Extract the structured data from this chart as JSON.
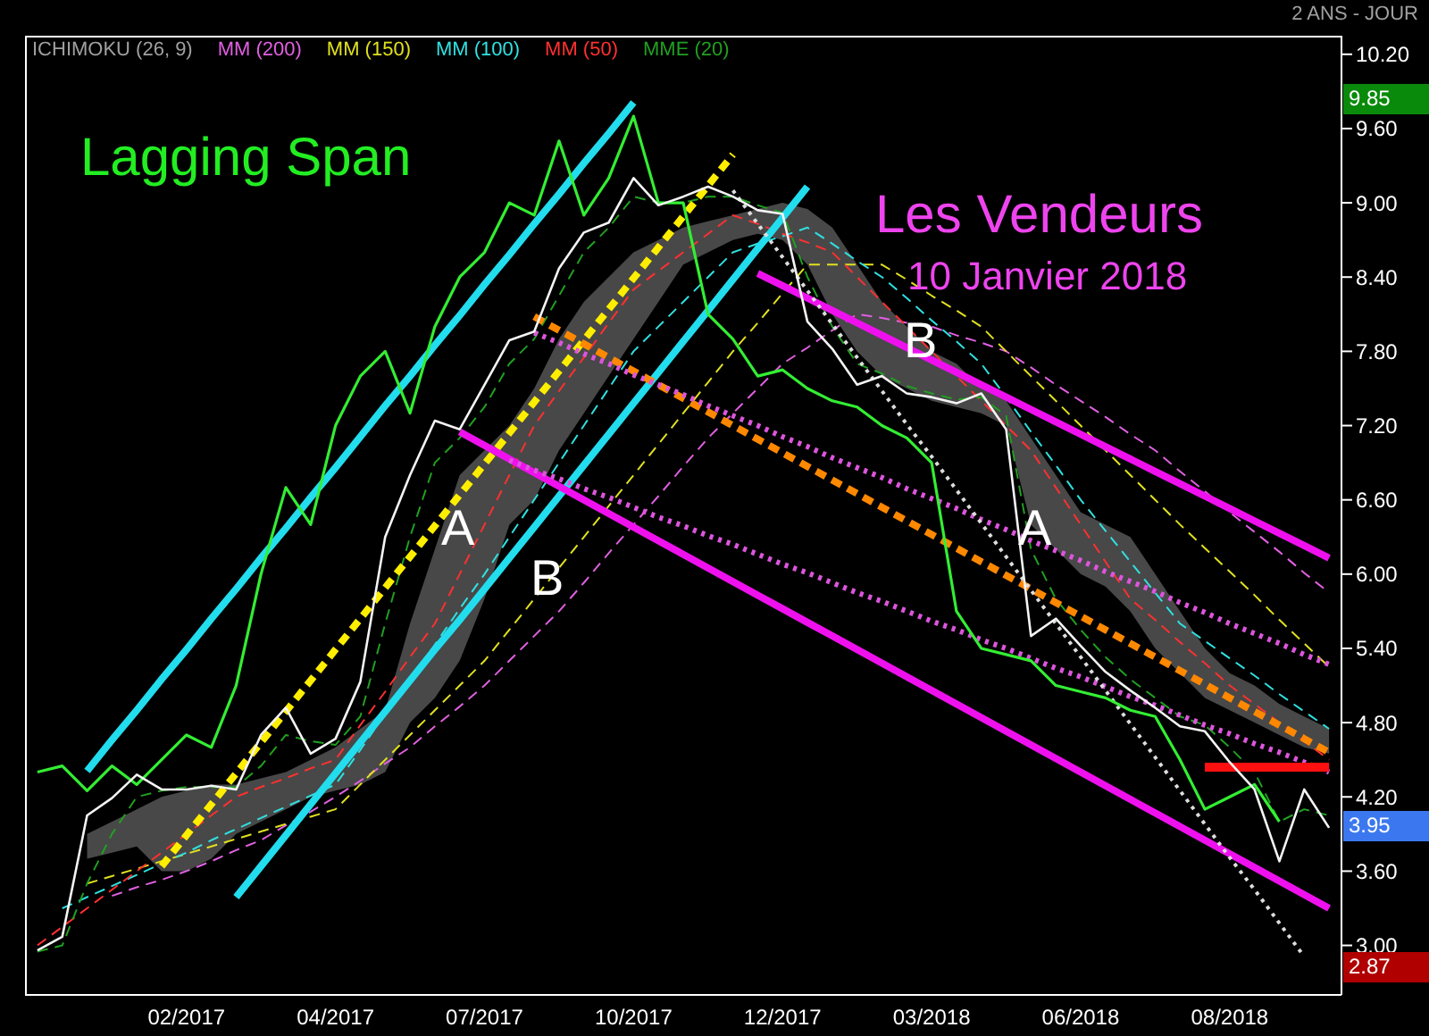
{
  "chart_data": {
    "type": "line",
    "categories": [
      null,
      null,
      null,
      null,
      null,
      null,
      "02/2017",
      null,
      null,
      null,
      null,
      null,
      "04/2017",
      null,
      null,
      null,
      null,
      null,
      "07/2017",
      null,
      null,
      null,
      null,
      null,
      "10/2017",
      null,
      null,
      null,
      null,
      null,
      "12/2017",
      null,
      null,
      null,
      null,
      null,
      "03/2018",
      null,
      null,
      null,
      null,
      null,
      "06/2018",
      null,
      null,
      null,
      null,
      null,
      "08/2018",
      null,
      null,
      null,
      null
    ],
    "ylim": [
      2.6,
      10.35
    ],
    "yticks": [
      {
        "value": 3,
        "label": "3.00"
      },
      {
        "value": 3.6,
        "label": "3.60"
      },
      {
        "value": 4.2,
        "label": "4.20"
      },
      {
        "value": 4.8,
        "label": "4.80"
      },
      {
        "value": 5.4,
        "label": "5.40"
      },
      {
        "value": 6,
        "label": "6.00"
      },
      {
        "value": 6.6,
        "label": "6.60"
      },
      {
        "value": 7.2,
        "label": "7.20"
      },
      {
        "value": 7.8,
        "label": "7.80"
      },
      {
        "value": 8.4,
        "label": "8.40"
      },
      {
        "value": 9,
        "label": "9.00"
      },
      {
        "value": 9.6,
        "label": "9.60"
      },
      {
        "value": 10.2,
        "label": "10.20"
      }
    ],
    "legend": "top left",
    "series": [
      {
        "name": "ICHIMOKU (26, 9)",
        "type": "area",
        "color": "#a0a0a0",
        "values": [
          null,
          null,
          null,
          null,
          null,
          null,
          null,
          null,
          null,
          null,
          null,
          null,
          null,
          null,
          null,
          null,
          null,
          null,
          null,
          null,
          null,
          null,
          null,
          null,
          null,
          null,
          null,
          null,
          null,
          null,
          null,
          null,
          null,
          null,
          null,
          null,
          null,
          null,
          null,
          null,
          null,
          null,
          null,
          null,
          null,
          null,
          null,
          null,
          null,
          null,
          null,
          null,
          null
        ],
        "lower": [
          null,
          null,
          3.7,
          3.75,
          3.8,
          3.6,
          3.6,
          3.7,
          3.9,
          4.0,
          4.1,
          4.2,
          4.25,
          4.3,
          4.4,
          4.8,
          5.0,
          5.3,
          5.8,
          6.4,
          6.6,
          7.0,
          7.3,
          7.6,
          7.9,
          8.2,
          8.5,
          8.6,
          8.7,
          8.75,
          8.7,
          8.5,
          8.1,
          7.8,
          7.6,
          7.5,
          7.4,
          7.35,
          7.3,
          7.2,
          6.4,
          6.2,
          6.0,
          5.9,
          5.7,
          5.4,
          5.2,
          5.0,
          4.9,
          4.8,
          4.7,
          4.6,
          4.55
        ],
        "upper": [
          null,
          null,
          3.9,
          4.0,
          4.1,
          4.2,
          4.25,
          4.3,
          4.3,
          4.35,
          4.4,
          4.5,
          4.6,
          4.75,
          4.9,
          5.6,
          6.2,
          6.8,
          7.0,
          7.2,
          7.5,
          7.9,
          8.2,
          8.4,
          8.6,
          8.7,
          8.8,
          8.85,
          8.9,
          8.95,
          9.0,
          8.95,
          8.8,
          8.5,
          8.2,
          8.0,
          7.8,
          7.7,
          7.5,
          7.4,
          7.1,
          6.8,
          6.5,
          6.4,
          6.3,
          6.0,
          5.7,
          5.4,
          5.2,
          5.1,
          4.95,
          4.85,
          4.75
        ]
      },
      {
        "name": "MM (200)",
        "color": "#e060e0",
        "line_style": "dashed",
        "values": [
          null,
          null,
          null,
          3.4,
          3.47,
          3.53,
          3.6,
          3.68,
          3.77,
          3.85,
          3.97,
          4.08,
          4.2,
          4.33,
          4.47,
          4.6,
          4.77,
          4.93,
          5.1,
          5.3,
          5.5,
          5.7,
          5.93,
          6.17,
          6.4,
          6.63,
          6.87,
          7.1,
          7.3,
          7.5,
          7.7,
          7.83,
          7.97,
          8.1,
          8.07,
          8.03,
          8.0,
          7.93,
          7.87,
          7.8,
          7.67,
          7.53,
          7.4,
          7.27,
          7.13,
          7.0,
          6.83,
          6.67,
          6.5,
          6.34,
          6.18,
          6.01,
          5.85
        ]
      },
      {
        "name": "MM (150)",
        "color": "#e0e020",
        "line_style": "dashed",
        "values": [
          null,
          null,
          3.5,
          3.56,
          3.62,
          3.68,
          3.74,
          3.8,
          3.86,
          3.92,
          3.98,
          4.04,
          4.1,
          4.3,
          4.5,
          4.7,
          4.9,
          5.1,
          5.3,
          5.55,
          5.8,
          6.05,
          6.3,
          6.55,
          6.8,
          7.05,
          7.3,
          7.55,
          7.8,
          8.03,
          8.27,
          8.5,
          8.5,
          8.5,
          8.5,
          8.38,
          8.25,
          8.13,
          8.0,
          7.8,
          7.6,
          7.4,
          7.2,
          7.0,
          6.8,
          6.6,
          6.4,
          6.21,
          6.02,
          5.83,
          5.63,
          5.44,
          5.25
        ]
      },
      {
        "name": "MM (100)",
        "color": "#30e0e0",
        "line_style": "dashed",
        "values": [
          null,
          3.3,
          3.39,
          3.48,
          3.57,
          3.66,
          3.75,
          3.85,
          3.94,
          4.03,
          4.12,
          4.21,
          4.3,
          4.58,
          4.87,
          5.15,
          5.43,
          5.72,
          6.0,
          6.3,
          6.6,
          6.9,
          7.2,
          7.5,
          7.8,
          8.0,
          8.2,
          8.4,
          8.6,
          8.67,
          8.73,
          8.8,
          8.67,
          8.53,
          8.4,
          8.23,
          8.05,
          7.88,
          7.7,
          7.43,
          7.15,
          6.88,
          6.6,
          6.35,
          6.1,
          5.85,
          5.6,
          5.46,
          5.32,
          5.18,
          5.03,
          4.89,
          4.75
        ]
      },
      {
        "name": "MM (50)",
        "color": "#ff3030",
        "line_style": "dashed",
        "values": [
          3.0,
          3.15,
          3.3,
          3.45,
          3.6,
          3.75,
          3.9,
          4.05,
          4.2,
          4.28,
          4.35,
          4.43,
          4.5,
          4.78,
          5.05,
          5.33,
          5.6,
          6.0,
          6.4,
          6.8,
          7.2,
          7.48,
          7.75,
          8.03,
          8.3,
          8.45,
          8.6,
          8.75,
          8.9,
          8.83,
          8.75,
          8.68,
          8.6,
          8.4,
          8.2,
          8.0,
          7.8,
          7.6,
          7.4,
          7.2,
          7.0,
          6.7,
          6.4,
          6.1,
          5.8,
          5.63,
          5.45,
          5.28,
          5.1,
          4.95,
          4.8,
          4.65,
          4.5
        ]
      },
      {
        "name": "MME (20)",
        "color": "#20a020",
        "line_style": "dashed",
        "values": [
          2.95,
          3.0,
          3.5,
          3.9,
          4.2,
          4.25,
          4.28,
          4.28,
          4.28,
          4.45,
          4.7,
          4.65,
          4.62,
          4.85,
          5.6,
          6.3,
          6.9,
          7.1,
          7.35,
          7.7,
          7.9,
          8.25,
          8.6,
          8.8,
          9.05,
          9.0,
          9.0,
          9.05,
          9.05,
          8.98,
          8.92,
          8.4,
          8.0,
          7.7,
          7.62,
          7.52,
          7.46,
          7.41,
          7.43,
          7.28,
          6.2,
          5.8,
          5.55,
          5.33,
          5.15,
          5.0,
          4.85,
          4.78,
          4.6,
          4.4,
          4.0,
          4.1,
          4.05
        ]
      },
      {
        "color": "#22ddee",
        "values": [
          null,
          null,
          4.41,
          4.66,
          4.9,
          5.15,
          5.39,
          5.64,
          5.88,
          6.13,
          6.37,
          6.62,
          6.86,
          7.11,
          7.36,
          7.6,
          7.85,
          8.09,
          8.34,
          8.58,
          8.83,
          9.07,
          9.32,
          9.56,
          9.81,
          null,
          null,
          null,
          null,
          null,
          null,
          null,
          null,
          null,
          null,
          null,
          null,
          null,
          null,
          null,
          null,
          null,
          null,
          null,
          null,
          null,
          null,
          null,
          null,
          null,
          null,
          null,
          null
        ]
      },
      {
        "color": "#22ddee",
        "values": [
          null,
          null,
          null,
          null,
          null,
          null,
          null,
          null,
          3.39,
          3.64,
          3.89,
          4.14,
          4.39,
          4.64,
          4.89,
          5.14,
          5.39,
          5.63,
          5.88,
          6.13,
          6.38,
          6.63,
          6.88,
          7.13,
          7.38,
          7.63,
          7.88,
          8.13,
          8.38,
          8.63,
          8.88,
          9.13,
          null,
          null,
          null,
          null,
          null,
          null,
          null,
          null,
          null,
          null,
          null,
          null,
          null,
          null,
          null,
          null,
          null,
          null,
          null,
          null,
          null
        ]
      },
      {
        "color": "#ffee00",
        "line_style": "dashed",
        "values": [
          null,
          null,
          null,
          null,
          null,
          3.64,
          3.89,
          4.14,
          4.39,
          4.64,
          4.89,
          5.14,
          5.39,
          5.64,
          5.89,
          6.14,
          6.39,
          6.64,
          6.89,
          7.14,
          7.39,
          7.64,
          7.89,
          8.14,
          8.39,
          8.64,
          8.89,
          9.14,
          9.39,
          null,
          null,
          null,
          null,
          null,
          null,
          null,
          null,
          null,
          null,
          null,
          null,
          null,
          null,
          null,
          null,
          null,
          null,
          null,
          null,
          null,
          null,
          null,
          null
        ]
      },
      {
        "color": "#ff8800",
        "line_style": "dashed",
        "values": [
          null,
          null,
          null,
          null,
          null,
          null,
          null,
          null,
          null,
          null,
          null,
          null,
          null,
          null,
          null,
          null,
          null,
          null,
          null,
          null,
          8.08,
          7.97,
          7.86,
          7.75,
          7.64,
          7.53,
          7.42,
          7.31,
          7.2,
          7.09,
          6.98,
          6.87,
          6.76,
          6.65,
          6.54,
          6.43,
          6.32,
          6.21,
          6.1,
          5.99,
          5.88,
          5.77,
          5.66,
          5.55,
          5.44,
          5.33,
          5.22,
          5.11,
          5.0,
          4.89,
          4.78,
          4.67,
          4.56
        ]
      },
      {
        "color": "#ee11ee",
        "values": [
          null,
          null,
          null,
          null,
          null,
          null,
          null,
          null,
          null,
          null,
          null,
          null,
          null,
          null,
          null,
          null,
          null,
          null,
          null,
          null,
          null,
          null,
          null,
          null,
          null,
          null,
          null,
          null,
          null,
          8.43,
          8.33,
          8.23,
          8.13,
          8.03,
          7.93,
          7.83,
          7.73,
          7.63,
          7.53,
          7.43,
          7.33,
          7.23,
          7.13,
          7.03,
          6.93,
          6.83,
          6.73,
          6.63,
          6.53,
          6.43,
          6.33,
          6.23,
          6.13
        ]
      },
      {
        "color": "#ee11ee",
        "values": [
          null,
          null,
          null,
          null,
          null,
          null,
          null,
          null,
          null,
          null,
          null,
          null,
          null,
          null,
          null,
          null,
          null,
          7.15,
          7.04,
          6.93,
          6.82,
          6.71,
          6.6,
          6.49,
          6.38,
          6.27,
          6.16,
          6.05,
          5.94,
          5.83,
          5.72,
          5.61,
          5.5,
          5.39,
          5.28,
          5.17,
          5.06,
          4.95,
          4.84,
          4.73,
          4.62,
          4.51,
          4.4,
          4.29,
          4.18,
          4.07,
          3.96,
          3.85,
          3.74,
          3.63,
          3.52,
          3.41,
          3.3
        ]
      },
      {
        "color": "#dd55dd",
        "line_style": "dotted",
        "values": [
          null,
          null,
          null,
          null,
          null,
          null,
          null,
          null,
          null,
          null,
          null,
          null,
          null,
          null,
          null,
          null,
          null,
          null,
          null,
          null,
          7.95,
          7.87,
          7.78,
          7.7,
          7.61,
          7.53,
          7.45,
          7.36,
          7.28,
          7.2,
          7.11,
          7.03,
          6.94,
          6.86,
          6.78,
          6.69,
          6.61,
          6.53,
          6.44,
          6.36,
          6.27,
          6.19,
          6.11,
          6.02,
          5.94,
          5.86,
          5.77,
          5.69,
          5.6,
          5.52,
          5.44,
          5.35,
          5.27
        ]
      },
      {
        "color": "#dd55dd",
        "line_style": "dotted",
        "values": [
          null,
          null,
          null,
          null,
          null,
          null,
          null,
          null,
          null,
          null,
          null,
          null,
          null,
          null,
          null,
          null,
          null,
          null,
          null,
          6.92,
          6.84,
          6.77,
          6.69,
          6.62,
          6.54,
          6.46,
          6.39,
          6.31,
          6.24,
          6.16,
          6.08,
          6.01,
          5.93,
          5.85,
          5.78,
          5.7,
          5.62,
          5.55,
          5.47,
          5.4,
          5.32,
          5.24,
          5.17,
          5.09,
          5.01,
          4.94,
          4.86,
          4.78,
          4.71,
          4.63,
          4.56,
          4.48,
          4.4
        ]
      },
      {
        "color": "#dddddd",
        "line_style": "dotted",
        "values": [
          null,
          null,
          null,
          null,
          null,
          null,
          null,
          null,
          null,
          null,
          null,
          null,
          null,
          null,
          null,
          null,
          null,
          null,
          null,
          null,
          null,
          null,
          null,
          null,
          null,
          null,
          null,
          null,
          9.1,
          8.83,
          8.56,
          8.29,
          8.02,
          7.75,
          7.48,
          7.21,
          6.95,
          6.68,
          6.41,
          6.14,
          5.87,
          5.6,
          5.33,
          5.06,
          4.79,
          4.52,
          4.25,
          3.98,
          3.71,
          3.45,
          3.18,
          2.91,
          null
        ]
      },
      {
        "color": "#ff1010",
        "values": [
          null,
          null,
          null,
          null,
          null,
          null,
          null,
          null,
          null,
          null,
          null,
          null,
          null,
          null,
          null,
          null,
          null,
          null,
          null,
          null,
          null,
          null,
          null,
          null,
          null,
          null,
          null,
          null,
          null,
          null,
          null,
          null,
          null,
          null,
          null,
          null,
          null,
          null,
          null,
          null,
          null,
          null,
          null,
          null,
          null,
          null,
          null,
          4.44,
          4.44,
          4.44,
          4.44,
          4.44,
          4.44
        ]
      },
      {
        "color": "#33ee33",
        "values": [
          4.4,
          4.45,
          4.25,
          4.45,
          4.3,
          4.5,
          4.7,
          4.6,
          5.1,
          6.0,
          6.7,
          6.4,
          7.2,
          7.6,
          7.8,
          7.3,
          8.0,
          8.4,
          8.6,
          9.0,
          8.9,
          9.5,
          8.9,
          9.2,
          9.7,
          9.0,
          9.0,
          8.1,
          7.9,
          7.6,
          7.65,
          7.5,
          7.4,
          7.35,
          7.2,
          7.1,
          6.9,
          5.7,
          5.4,
          5.35,
          5.3,
          5.1,
          5.05,
          5.0,
          4.9,
          4.85,
          4.5,
          4.1,
          4.2,
          4.3,
          4.0,
          null,
          null
        ]
      },
      {
        "color": "#f4f4f4",
        "values": [
          2.96,
          3.07,
          4.05,
          4.19,
          4.38,
          4.26,
          4.26,
          4.29,
          4.26,
          4.7,
          4.92,
          4.55,
          4.67,
          5.13,
          6.3,
          6.8,
          7.24,
          7.17,
          7.53,
          7.89,
          7.96,
          8.47,
          8.76,
          8.84,
          9.2,
          8.98,
          9.05,
          9.13,
          9.05,
          8.94,
          8.91,
          8.04,
          7.82,
          7.53,
          7.6,
          7.46,
          7.43,
          7.38,
          7.46,
          7.17,
          5.5,
          5.64,
          5.42,
          5.21,
          5.06,
          4.92,
          4.77,
          4.73,
          4.48,
          4.26,
          3.68,
          4.26,
          3.95
        ]
      }
    ],
    "annotations": [
      "Lagging Span",
      "Les Vendeurs",
      "10 Janvier 2018",
      "A",
      "B",
      "B",
      "A",
      "2 ANS - JOUR",
      "9.85",
      "3.95",
      "2.87"
    ]
  }
}
